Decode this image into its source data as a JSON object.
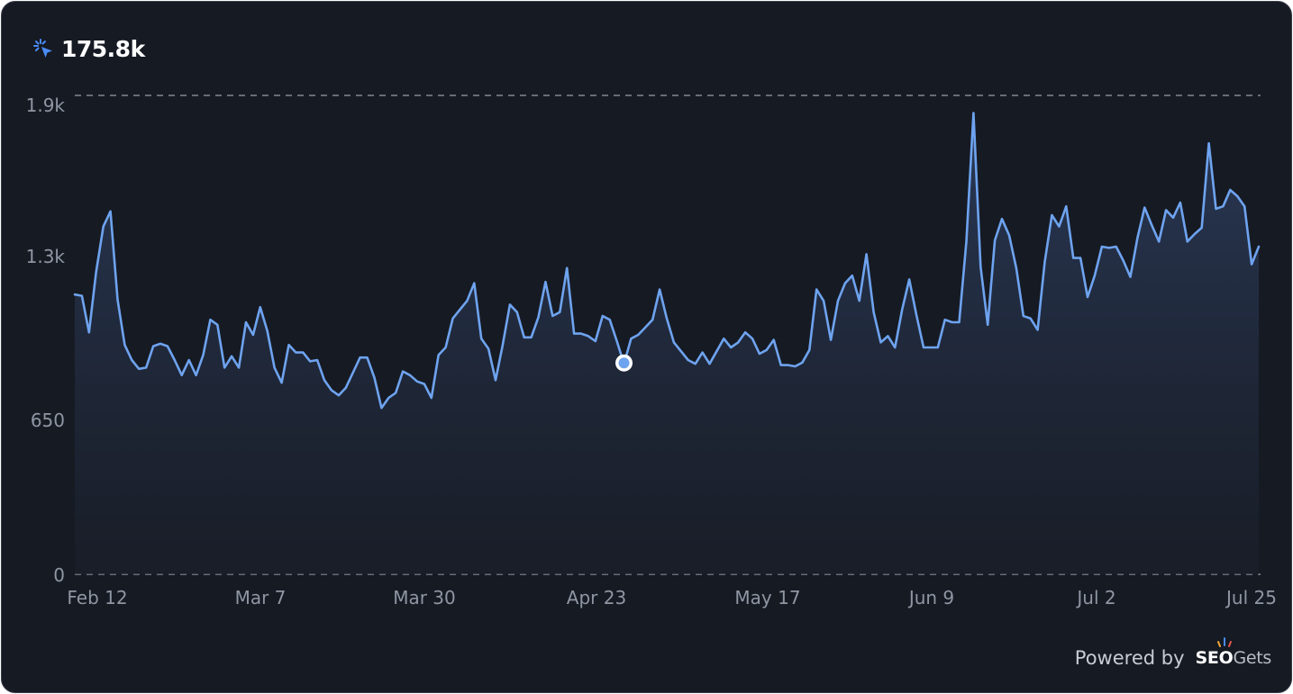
{
  "header": {
    "metric_value": "175.8k",
    "metric_icon": "click-cursor-icon",
    "accent_color": "#4a8cf7"
  },
  "footer": {
    "powered_label": "Powered by",
    "brand_seo": "SEO",
    "brand_gets": "Gets"
  },
  "chart_data": {
    "type": "area",
    "x_start": "Feb 12",
    "x_end": "Jul 25",
    "x_ticks": [
      "Feb 12",
      "Mar 7",
      "Mar 30",
      "Apr 23",
      "May 17",
      "Jun 9",
      "Jul 2",
      "Jul 25"
    ],
    "y_ticks": [
      "0",
      "650",
      "1.3k",
      "1.9k"
    ],
    "y_tick_values": [
      0,
      650,
      1300,
      1900
    ],
    "ylim": [
      0,
      1900
    ],
    "grid": "dashed horizontal at 0 and 1.9k",
    "line_color": "#6ea3ef",
    "fill_color": "#2a3a58",
    "highlight_point": {
      "date": "Apr 26",
      "value": 835
    },
    "series": [
      {
        "values": [
          1110,
          1105,
          960,
          1200,
          1380,
          1440,
          1090,
          910,
          850,
          815,
          820,
          905,
          915,
          905,
          850,
          790,
          850,
          790,
          870,
          1010,
          990,
          820,
          865,
          820,
          1000,
          950,
          1060,
          965,
          820,
          760,
          910,
          880,
          880,
          845,
          850,
          770,
          730,
          710,
          740,
          800,
          860,
          860,
          780,
          660,
          700,
          720,
          805,
          790,
          765,
          755,
          700,
          870,
          900,
          1015,
          1050,
          1085,
          1155,
          935,
          895,
          770,
          910,
          1070,
          1040,
          940,
          940,
          1020,
          1160,
          1025,
          1040,
          1215,
          955,
          955,
          945,
          925,
          1025,
          1010,
          925,
          835,
          935,
          950,
          980,
          1010,
          1130,
          1015,
          920,
          885,
          850,
          835,
          880,
          835,
          885,
          935,
          900,
          920,
          960,
          935,
          875,
          890,
          930,
          830,
          830,
          825,
          840,
          890,
          1130,
          1085,
          930,
          1085,
          1155,
          1185,
          1085,
          1270,
          1040,
          920,
          945,
          900,
          1050,
          1170,
          1030,
          900,
          900,
          900,
          1010,
          1000,
          1000,
          1320,
          1830,
          1220,
          990,
          1325,
          1410,
          1345,
          1215,
          1025,
          1015,
          970,
          1240,
          1425,
          1380,
          1460,
          1255,
          1255,
          1100,
          1185,
          1300,
          1295,
          1300,
          1245,
          1180,
          1335,
          1455,
          1385,
          1320,
          1445,
          1415,
          1475,
          1320,
          1350,
          1375,
          1710,
          1450,
          1460,
          1525,
          1500,
          1460,
          1230,
          1300
        ]
      }
    ]
  }
}
